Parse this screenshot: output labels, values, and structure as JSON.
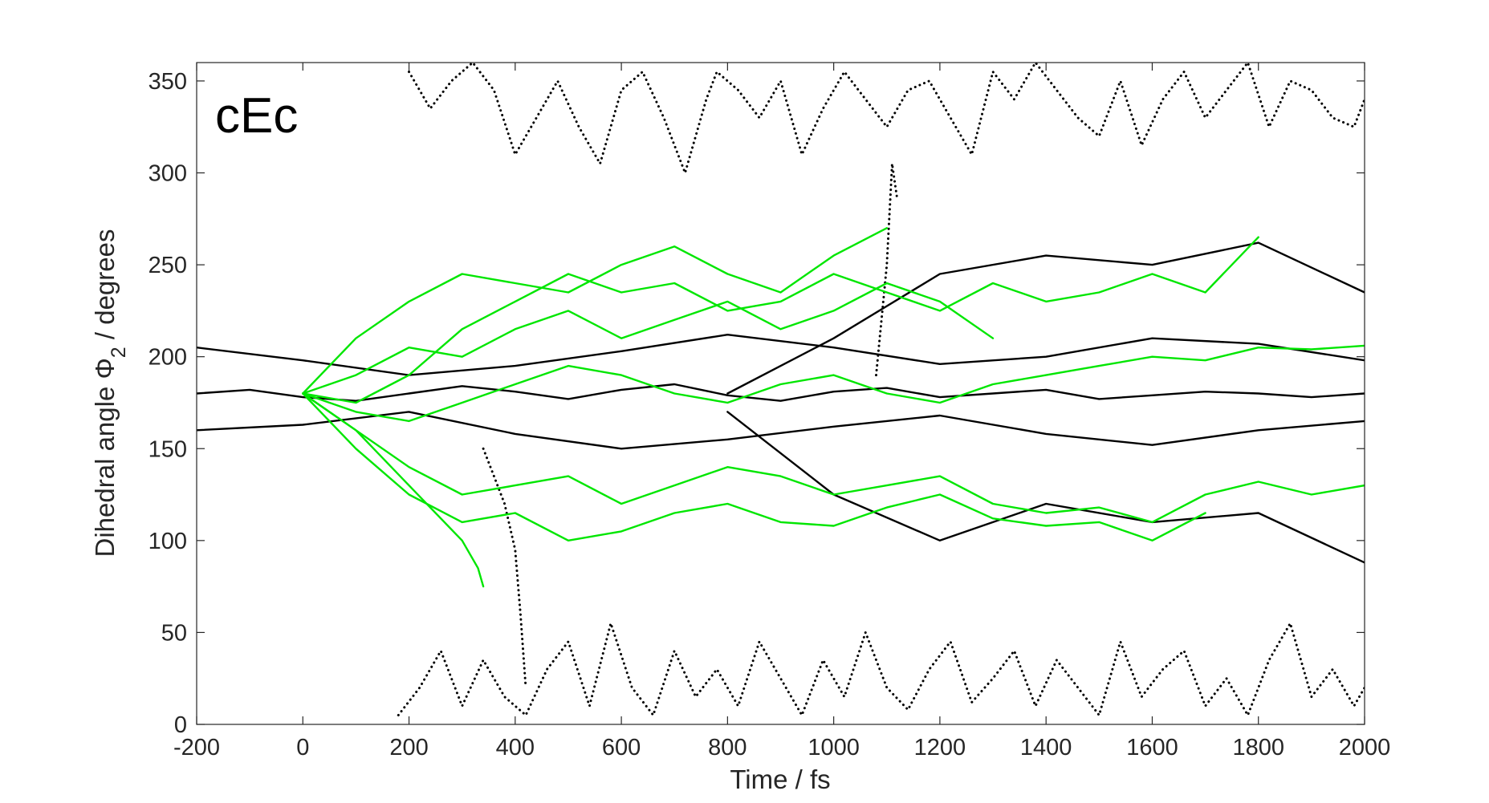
{
  "chart_data": {
    "type": "line",
    "title": "",
    "panel_label": "cEc",
    "xlabel": "Time / fs",
    "ylabel_prefix": "Dihedral angle Φ",
    "ylabel_subscript": "2",
    "ylabel_suffix": " / degrees",
    "xlim": [
      -200,
      2000
    ],
    "ylim": [
      0,
      360
    ],
    "xticks": [
      -200,
      0,
      200,
      400,
      600,
      800,
      1000,
      1200,
      1400,
      1600,
      1800,
      2000
    ],
    "yticks": [
      0,
      50,
      100,
      150,
      200,
      250,
      300,
      350
    ],
    "grid": false,
    "legend": "none",
    "colors": {
      "ground_state": "#000000",
      "excited_state": "#00e600",
      "axis": "#262626"
    },
    "series": [
      {
        "group": "ground_state",
        "style": "solid",
        "x": [
          -200,
          -100,
          0,
          100,
          200,
          300,
          400,
          500,
          600,
          700,
          800,
          900,
          1000,
          1100,
          1200,
          1300,
          1400,
          1500,
          1600,
          1700,
          1800,
          1900,
          2000
        ],
        "y": [
          180,
          182,
          178,
          176,
          180,
          184,
          181,
          177,
          182,
          185,
          179,
          176,
          181,
          183,
          178,
          180,
          182,
          177,
          179,
          181,
          180,
          178,
          180
        ]
      },
      {
        "group": "ground_state",
        "style": "solid",
        "x": [
          -200,
          0,
          200,
          400,
          600,
          800,
          1000,
          1200,
          1400,
          1600,
          1800,
          2000
        ],
        "y": [
          205,
          198,
          190,
          195,
          203,
          212,
          205,
          196,
          200,
          210,
          207,
          198
        ]
      },
      {
        "group": "ground_state",
        "style": "solid",
        "x": [
          -200,
          0,
          200,
          400,
          600,
          800,
          1000,
          1200,
          1400,
          1600,
          1800,
          2000
        ],
        "y": [
          160,
          163,
          170,
          158,
          150,
          155,
          162,
          168,
          158,
          152,
          160,
          165
        ]
      },
      {
        "group": "ground_state",
        "style": "solid",
        "x": [
          800,
          1000,
          1200,
          1400,
          1600,
          1800,
          2000
        ],
        "y": [
          180,
          210,
          245,
          255,
          250,
          262,
          235
        ]
      },
      {
        "group": "ground_state",
        "style": "solid",
        "x": [
          800,
          1000,
          1200,
          1400,
          1600,
          1800,
          2000
        ],
        "y": [
          170,
          125,
          100,
          120,
          110,
          115,
          88
        ]
      },
      {
        "group": "excited_state",
        "style": "solid",
        "x": [
          0,
          100,
          200,
          300,
          400,
          500,
          600,
          700,
          800,
          900,
          1000,
          1100
        ],
        "y": [
          180,
          210,
          230,
          245,
          240,
          235,
          250,
          260,
          245,
          235,
          255,
          270
        ]
      },
      {
        "group": "excited_state",
        "style": "solid",
        "x": [
          0,
          100,
          200,
          300,
          400,
          500,
          600,
          700,
          800,
          900,
          1000,
          1100,
          1200,
          1300,
          1400,
          1500,
          1600,
          1700,
          1800
        ],
        "y": [
          180,
          175,
          190,
          215,
          230,
          245,
          235,
          240,
          225,
          230,
          245,
          235,
          225,
          240,
          230,
          235,
          245,
          235,
          265
        ]
      },
      {
        "group": "excited_state",
        "style": "solid",
        "x": [
          0,
          100,
          200,
          300,
          400,
          500,
          600,
          700,
          800,
          900,
          1000,
          1100,
          1200,
          1300,
          1400,
          1500,
          1600,
          1700,
          1800,
          1900,
          2000
        ],
        "y": [
          180,
          170,
          165,
          175,
          185,
          195,
          190,
          180,
          175,
          185,
          190,
          180,
          175,
          185,
          190,
          195,
          200,
          198,
          205,
          204,
          206
        ]
      },
      {
        "group": "excited_state",
        "style": "solid",
        "x": [
          0,
          100,
          200,
          300,
          400,
          500,
          600,
          700,
          800,
          900,
          1000,
          1100,
          1200,
          1300,
          1400,
          1500,
          1600,
          1700,
          1800,
          1900,
          2000
        ],
        "y": [
          180,
          160,
          140,
          125,
          130,
          135,
          120,
          130,
          140,
          135,
          125,
          130,
          135,
          120,
          115,
          118,
          110,
          125,
          132,
          125,
          130
        ]
      },
      {
        "group": "excited_state",
        "style": "solid",
        "x": [
          0,
          100,
          200,
          300,
          400,
          500,
          600,
          700,
          800,
          900,
          1000,
          1100,
          1200,
          1300,
          1400,
          1500,
          1600,
          1700
        ],
        "y": [
          180,
          150,
          125,
          110,
          115,
          100,
          105,
          115,
          120,
          110,
          108,
          118,
          125,
          112,
          108,
          110,
          100,
          115
        ]
      },
      {
        "group": "excited_state",
        "style": "solid",
        "x": [
          0,
          100,
          200,
          300,
          400,
          500,
          600,
          700,
          800,
          900,
          1000,
          1100,
          1200,
          1300
        ],
        "y": [
          180,
          190,
          205,
          200,
          215,
          225,
          210,
          220,
          230,
          215,
          225,
          240,
          230,
          210
        ]
      },
      {
        "group": "excited_state",
        "style": "solid",
        "x": [
          0,
          100,
          200,
          300,
          330,
          340
        ],
        "y": [
          180,
          160,
          130,
          100,
          85,
          75
        ]
      },
      {
        "group": "ground_state",
        "style": "dotted",
        "x": [
          180,
          220,
          260,
          300,
          340,
          380,
          420,
          460,
          500,
          540,
          580,
          620,
          660,
          700,
          740,
          780,
          820,
          860,
          900,
          940,
          980,
          1020,
          1060,
          1100,
          1140,
          1180,
          1220,
          1260,
          1300,
          1340,
          1380,
          1420,
          1460,
          1500,
          1540,
          1580,
          1620,
          1660,
          1700,
          1740,
          1780,
          1820,
          1860,
          1900,
          1940,
          1980,
          2000
        ],
        "y": [
          5,
          20,
          40,
          10,
          35,
          15,
          5,
          30,
          45,
          10,
          55,
          20,
          5,
          40,
          15,
          30,
          10,
          45,
          25,
          5,
          35,
          15,
          50,
          20,
          8,
          30,
          45,
          12,
          25,
          40,
          10,
          35,
          20,
          5,
          45,
          15,
          30,
          40,
          10,
          25,
          5,
          35,
          55,
          15,
          30,
          10,
          20
        ]
      },
      {
        "group": "ground_state",
        "style": "dotted",
        "x": [
          200,
          240,
          280,
          320,
          360,
          400,
          440,
          480,
          520,
          560,
          600,
          640,
          680,
          720,
          760,
          780,
          820,
          860,
          900,
          940,
          980,
          1020,
          1060,
          1100,
          1140,
          1180,
          1220,
          1260,
          1300,
          1340,
          1380,
          1420,
          1460,
          1500,
          1540,
          1580,
          1620,
          1660,
          1700,
          1740,
          1780,
          1820,
          1860,
          1900,
          1940,
          1980,
          2000
        ],
        "y": [
          355,
          335,
          350,
          360,
          345,
          310,
          330,
          350,
          325,
          305,
          345,
          355,
          330,
          300,
          340,
          355,
          345,
          330,
          350,
          310,
          335,
          355,
          340,
          325,
          345,
          350,
          330,
          310,
          355,
          340,
          360,
          345,
          330,
          320,
          350,
          315,
          340,
          355,
          330,
          345,
          360,
          325,
          350,
          345,
          330,
          325,
          340
        ]
      },
      {
        "group": "ground_state",
        "style": "dotted",
        "x": [
          340,
          360,
          380,
          400,
          410,
          420
        ],
        "y": [
          150,
          135,
          120,
          95,
          60,
          20
        ]
      },
      {
        "group": "ground_state",
        "style": "dotted",
        "x": [
          1080,
          1100,
          1110,
          1120
        ],
        "y": [
          190,
          250,
          305,
          285
        ]
      }
    ]
  }
}
